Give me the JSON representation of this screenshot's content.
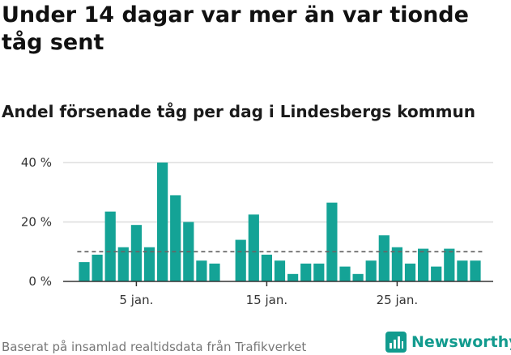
{
  "title": "Under 14 dagar var mer än var tionde tåg sent",
  "subtitle": "Andel försenade tåg per dag i Lindesbergs kommun",
  "footer": "Baserat på insamlad realtidsdata från Trafikverket",
  "brand": {
    "name": "Newsworthy",
    "icon": "newsworthy-logo-icon"
  },
  "colors": {
    "bar": "#14a396",
    "reference_line": "#666666",
    "grid": "#dddddd",
    "brand": "#129b8e"
  },
  "chart_data": {
    "type": "bar",
    "x": [
      1,
      2,
      3,
      4,
      5,
      6,
      7,
      8,
      9,
      10,
      11,
      12,
      13,
      14,
      15,
      16,
      17,
      18,
      19,
      20,
      21,
      22,
      23,
      24,
      25,
      26,
      27,
      28,
      29,
      30,
      31
    ],
    "values": [
      6.5,
      9,
      23.5,
      11.5,
      19,
      11.5,
      40,
      29,
      20,
      7,
      6,
      null,
      14,
      22.5,
      9,
      7,
      2.5,
      6,
      6,
      26.5,
      5,
      2.5,
      7,
      15.5,
      11.5,
      6,
      11,
      5,
      11,
      7,
      7
    ],
    "ylim": [
      0,
      40
    ],
    "yticks": [
      0,
      20,
      40
    ],
    "ytick_labels": [
      "0 %",
      "20 %",
      "40 %"
    ],
    "xticks": [
      5,
      15,
      25
    ],
    "xtick_labels": [
      "5 jan.",
      "15 jan.",
      "25 jan."
    ],
    "reference_line": 10,
    "grid": true
  }
}
